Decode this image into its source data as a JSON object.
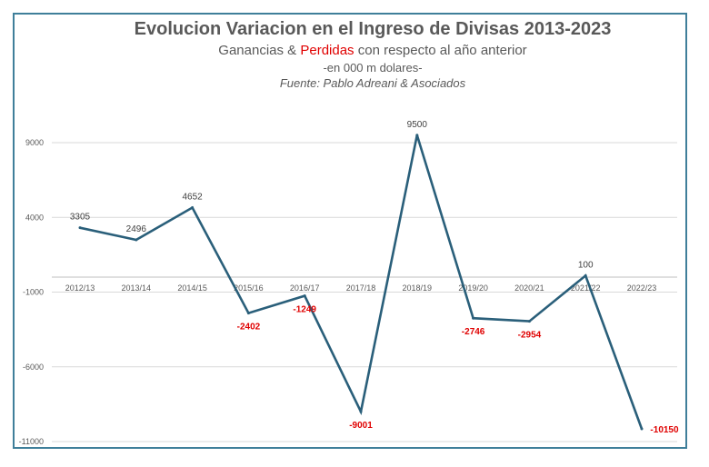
{
  "title": "Evolucion Variacion en el Ingreso de Divisas 2013-2023",
  "subtitle_prefix": "Ganancias & ",
  "subtitle_highlight": "Perdidas",
  "subtitle_suffix": " con respecto al año anterior",
  "note": "-en 000 m dolares-",
  "source": "Fuente: Pablo Adreani & Asociados",
  "colors": {
    "line": "#2a5f7a",
    "negative_label": "#e00000",
    "frame": "#3f7f9a",
    "grid": "#d9d9d9"
  },
  "chart_data": {
    "type": "line",
    "categories": [
      "2012/13",
      "2013/14",
      "2014/15",
      "2015/16",
      "2016/17",
      "2017/18",
      "2018/19",
      "2019/20",
      "2020/21",
      "2021/22",
      "2022/23"
    ],
    "series": [
      {
        "values": [
          3305,
          2496,
          4652,
          -2402,
          -1249,
          -9001,
          9500,
          -2746,
          -2954,
          100,
          -10150
        ]
      }
    ],
    "y_ticks": [
      9000,
      4000,
      -1000,
      -6000,
      -11000
    ],
    "ylim": [
      -11000,
      9000
    ],
    "grid": true,
    "legend": "none"
  }
}
